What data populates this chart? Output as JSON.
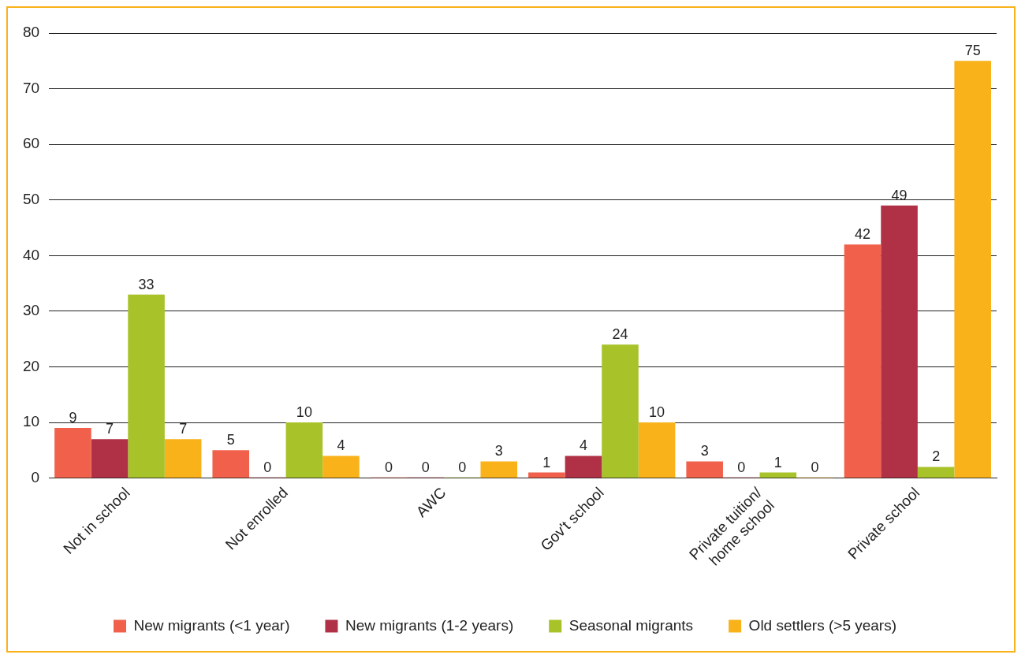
{
  "chart_data": {
    "type": "bar",
    "categories": [
      "Not in school",
      "Not enrolled",
      "AWC",
      "Gov't school",
      "Private tuition/ home school",
      "Private school"
    ],
    "series": [
      {
        "name": "New migrants (<1 year)",
        "color": "#f0604b",
        "values": [
          9,
          5,
          0,
          1,
          3,
          42
        ]
      },
      {
        "name": "New migrants (1-2 years)",
        "color": "#b03045",
        "values": [
          7,
          0,
          0,
          4,
          0,
          49
        ]
      },
      {
        "name": "Seasonal migrants",
        "color": "#a8c22a",
        "values": [
          33,
          10,
          0,
          24,
          1,
          2
        ]
      },
      {
        "name": "Old settlers (>5 years)",
        "color": "#f9b21a",
        "values": [
          7,
          4,
          3,
          10,
          0,
          75
        ]
      }
    ],
    "ylim": [
      0,
      80
    ],
    "yticks": [
      0,
      10,
      20,
      30,
      40,
      50,
      60,
      70,
      80
    ],
    "grid": "y",
    "legend": "bottom",
    "data_labels": true
  }
}
